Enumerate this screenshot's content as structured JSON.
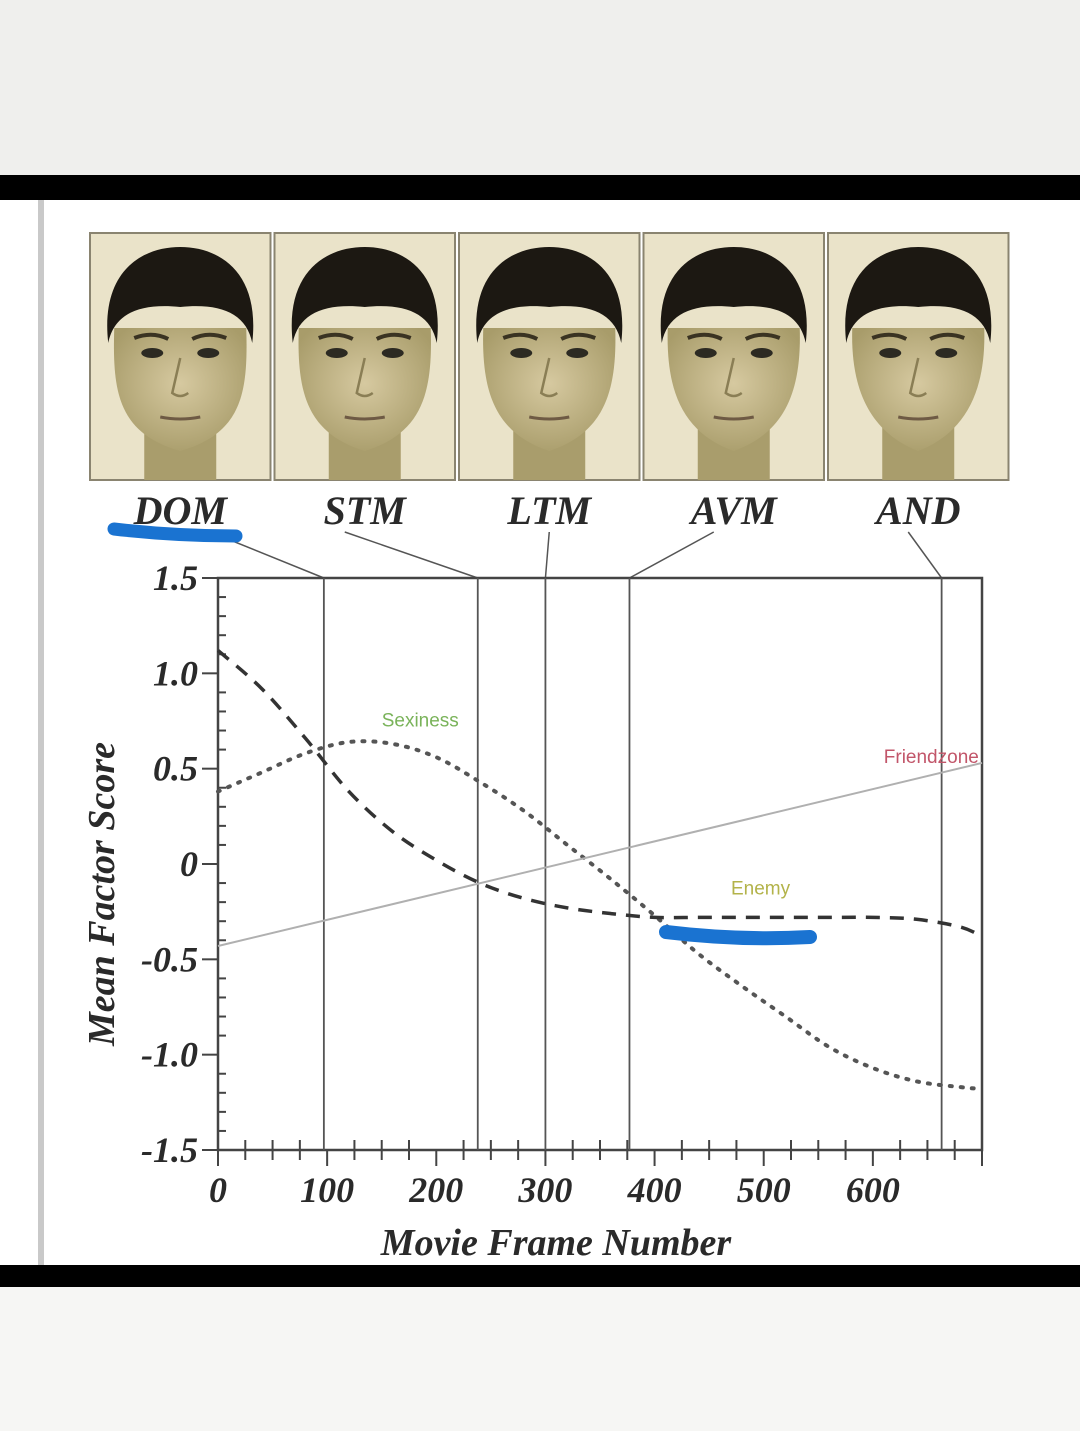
{
  "faces": {
    "labels": [
      "DOM",
      "STM",
      "LTM",
      "AVM",
      "AND"
    ],
    "frames": [
      97,
      238,
      300,
      377,
      663
    ]
  },
  "chart_data": {
    "type": "line",
    "xlabel": "Movie Frame Number",
    "ylabel": "Mean Factor Score",
    "xlim": [
      0,
      700
    ],
    "ylim": [
      -1.5,
      1.5
    ],
    "xticks": [
      0,
      100,
      200,
      300,
      400,
      500,
      600
    ],
    "xtick_labels": [
      "0",
      "100",
      "200",
      "300",
      "400",
      "500",
      "600"
    ],
    "yticks": [
      1.5,
      1.0,
      0.5,
      0,
      -0.5,
      -1.0,
      -1.5
    ],
    "ytick_labels": [
      "1.5",
      "1.0",
      "0.5",
      "0",
      "-0.5",
      "-1.0",
      "-1.5"
    ],
    "series": [
      {
        "name": "Sexiness",
        "style": "dotted",
        "color": "#555555",
        "label_color": "#7ab35a",
        "x": [
          0,
          40,
          80,
          120,
          160,
          200,
          240,
          280,
          320,
          360,
          400,
          440,
          480,
          520,
          560,
          600,
          640,
          680,
          700
        ],
        "y": [
          0.38,
          0.48,
          0.58,
          0.64,
          0.63,
          0.56,
          0.43,
          0.28,
          0.1,
          -0.08,
          -0.27,
          -0.47,
          -0.64,
          -0.8,
          -0.96,
          -1.07,
          -1.14,
          -1.17,
          -1.18
        ]
      },
      {
        "name": "Enemy",
        "style": "dashed",
        "color": "#333333",
        "label_color": "#b3b34a",
        "x": [
          0,
          40,
          80,
          120,
          160,
          200,
          240,
          280,
          320,
          360,
          400,
          440,
          480,
          520,
          560,
          600,
          640,
          680,
          700
        ],
        "y": [
          1.12,
          0.92,
          0.66,
          0.38,
          0.17,
          0.02,
          -0.1,
          -0.18,
          -0.23,
          -0.26,
          -0.28,
          -0.28,
          -0.28,
          -0.28,
          -0.28,
          -0.28,
          -0.29,
          -0.33,
          -0.38
        ]
      },
      {
        "name": "Friendzone",
        "style": "solid",
        "color": "#b0b0b0",
        "label_color": "#c2566a",
        "x": [
          0,
          700
        ],
        "y": [
          -0.43,
          0.53
        ]
      }
    ],
    "annotations": [
      "Sexiness",
      "Friendzone",
      "Enemy"
    ],
    "highlight_color": "#1a73d1"
  }
}
